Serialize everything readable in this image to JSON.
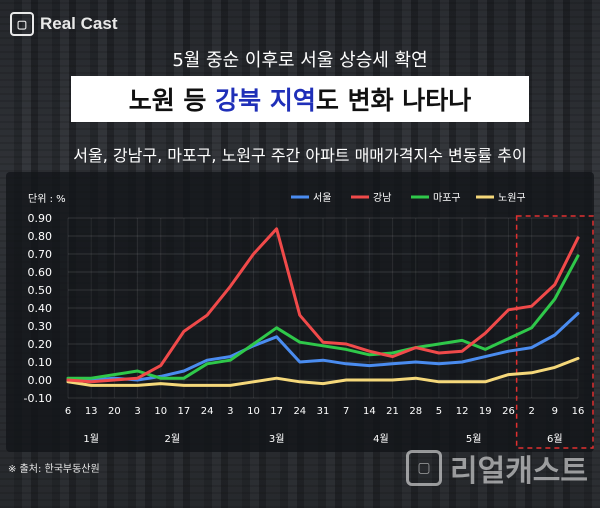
{
  "brand": {
    "logo_text": "Real Cast",
    "watermark_text": "리얼캐스트"
  },
  "header": {
    "subtitle": "5월 중순 이후로 서울 상승세 확연",
    "title_part1": "노원 등 ",
    "title_highlight": "강북 지역",
    "title_part2": "도 변화 나타나"
  },
  "chart_title": "서울, 강남구, 마포구, 노원구 주간 아파트 매매가격지수 변동률 추이",
  "source": "※ 출처: 한국부동산원",
  "colors": {
    "seoul": "#4a8cf0",
    "gangnam": "#f04a4a",
    "mapo": "#2fc84a",
    "nowon": "#f5d87a",
    "highlight_box": "#e03030"
  },
  "chart_data": {
    "type": "line",
    "unit_label": "단위 : %",
    "ylim": [
      -0.1,
      0.9
    ],
    "yticks": [
      "0.90",
      "0.80",
      "0.70",
      "0.60",
      "0.50",
      "0.40",
      "0.30",
      "0.20",
      "0.10",
      "0.00",
      "-0.10"
    ],
    "x": [
      "6",
      "13",
      "20",
      "3",
      "10",
      "17",
      "24",
      "3",
      "10",
      "17",
      "24",
      "31",
      "7",
      "14",
      "21",
      "28",
      "5",
      "12",
      "19",
      "26",
      "2",
      "9",
      "16"
    ],
    "months": [
      {
        "label": "1월",
        "start": 0,
        "end": 2
      },
      {
        "label": "2월",
        "start": 3,
        "end": 6
      },
      {
        "label": "3월",
        "start": 7,
        "end": 11
      },
      {
        "label": "4월",
        "start": 12,
        "end": 15
      },
      {
        "label": "5월",
        "start": 16,
        "end": 19
      },
      {
        "label": "6월",
        "start": 20,
        "end": 22
      }
    ],
    "highlight_range": [
      20,
      22
    ],
    "series": [
      {
        "name": "서울",
        "key": "seoul",
        "values": [
          0.0,
          0.0,
          0.01,
          0.0,
          0.02,
          0.05,
          0.11,
          0.13,
          0.19,
          0.24,
          0.1,
          0.11,
          0.09,
          0.08,
          0.09,
          0.1,
          0.09,
          0.1,
          0.13,
          0.16,
          0.18,
          0.25,
          0.37
        ]
      },
      {
        "name": "강남",
        "key": "gangnam",
        "values": [
          0.0,
          -0.01,
          0.0,
          0.01,
          0.08,
          0.27,
          0.36,
          0.52,
          0.7,
          0.84,
          0.36,
          0.21,
          0.2,
          0.16,
          0.13,
          0.18,
          0.15,
          0.16,
          0.26,
          0.39,
          0.41,
          0.53,
          0.79
        ]
      },
      {
        "name": "마포구",
        "key": "mapo",
        "values": [
          0.01,
          0.01,
          0.03,
          0.05,
          0.01,
          0.01,
          0.09,
          0.11,
          0.2,
          0.29,
          0.21,
          0.19,
          0.17,
          0.14,
          0.15,
          0.18,
          0.2,
          0.22,
          0.17,
          0.23,
          0.29,
          0.45,
          0.69
        ]
      },
      {
        "name": "노원구",
        "key": "nowon",
        "values": [
          -0.01,
          -0.03,
          -0.03,
          -0.03,
          -0.02,
          -0.03,
          -0.03,
          -0.03,
          -0.01,
          0.01,
          -0.01,
          -0.02,
          0.0,
          0.0,
          0.0,
          0.01,
          -0.01,
          -0.01,
          -0.01,
          0.03,
          0.04,
          0.07,
          0.12
        ]
      }
    ]
  }
}
